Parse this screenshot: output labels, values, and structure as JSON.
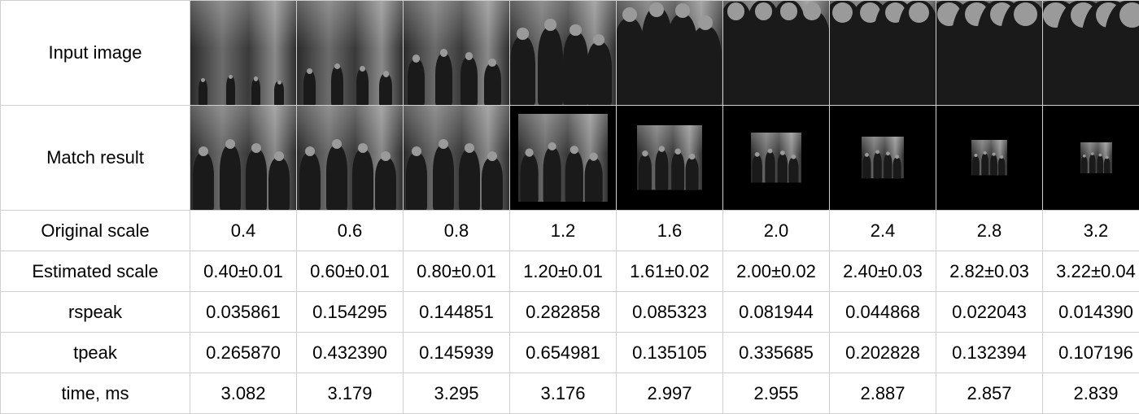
{
  "labels": {
    "input_image": "Input image",
    "match_result": "Match result",
    "original_scale": "Original scale",
    "estimated_scale": "Estimated scale",
    "rspeak": "rspeak",
    "tpeak": "tpeak",
    "time": "time, ms"
  },
  "original_scale": [
    "0.4",
    "0.6",
    "0.8",
    "1.2",
    "1.6",
    "2.0",
    "2.4",
    "2.8",
    "3.2"
  ],
  "estimated_scale": [
    "0.40±0.01",
    "0.60±0.01",
    "0.80±0.01",
    "1.20±0.01",
    "1.61±0.02",
    "2.00±0.02",
    "2.40±0.03",
    "2.82±0.03",
    "3.22±0.04"
  ],
  "rspeak": [
    "0.035861",
    "0.154295",
    "0.144851",
    "0.282858",
    "0.085323",
    "0.081944",
    "0.044868",
    "0.022043",
    "0.014390"
  ],
  "tpeak": [
    "0.265870",
    "0.432390",
    "0.145939",
    "0.654981",
    "0.135105",
    "0.335685",
    "0.202828",
    "0.132394",
    "0.107196"
  ],
  "time_ms": [
    "3.082",
    "3.179",
    "3.295",
    "3.176",
    "2.997",
    "2.955",
    "2.887",
    "2.857",
    "2.839"
  ]
}
